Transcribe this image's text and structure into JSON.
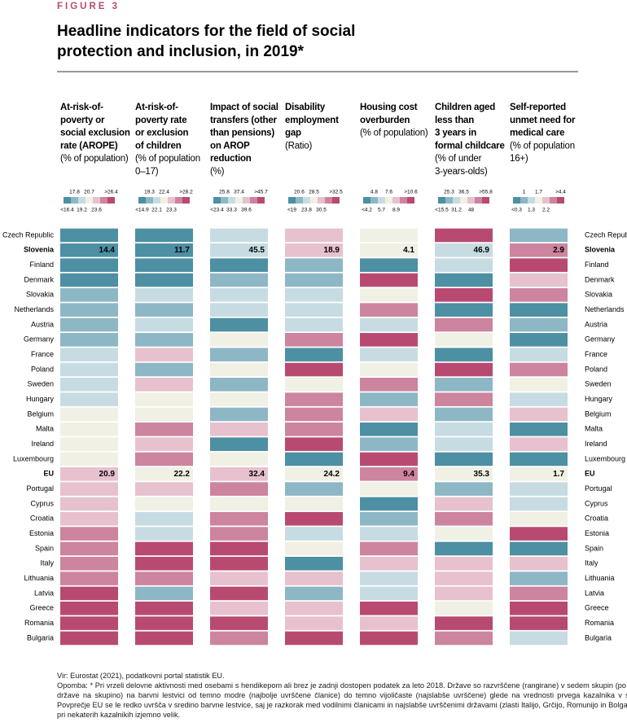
{
  "figure_label": "FIGURE 3",
  "title_lines": [
    "Headline indicators for the field of social",
    "protection and inclusion, in 2019*"
  ],
  "chart_data": {
    "type": "heatmap",
    "rows": [
      "Czech Republic",
      "Slovenia",
      "Finland",
      "Denmark",
      "Slovakia",
      "Netherlands",
      "Austria",
      "Germany",
      "France",
      "Poland",
      "Sweden",
      "Hungary",
      "Belgium",
      "Malta",
      "Ireland",
      "Luxembourg",
      "EU",
      "Portugal",
      "Cyprus",
      "Croatia",
      "Estonia",
      "Spain",
      "Italy",
      "Lithuania",
      "Latvia",
      "Greece",
      "Romania",
      "Bulgaria"
    ],
    "palette": [
      "#4d8fa3",
      "#8db7c5",
      "#c7dce2",
      "#f0f1e4",
      "#e7c1ce",
      "#cc849f",
      "#b84a72"
    ],
    "columns": [
      {
        "title_lines": [
          "At-risk-of-",
          "poverty or",
          "social exclusion",
          "rate (AROPE)"
        ],
        "unit_lines": [
          "(% of population)"
        ],
        "legend_top": [
          "17.8",
          "20.7",
          ">26.4"
        ],
        "legend_bottom": [
          "<16.4",
          "19.2",
          "23.6"
        ],
        "colors": [
          "#4d8fa3",
          "#4d8fa3",
          "#4d8fa3",
          "#4d8fa3",
          "#8db7c5",
          "#8db7c5",
          "#8db7c5",
          "#8db7c5",
          "#c7dce2",
          "#c7dce2",
          "#c7dce2",
          "#c7dce2",
          "#f0f1e4",
          "#f0f1e4",
          "#f0f1e4",
          "#f0f1e4",
          "#e7c1ce",
          "#e7c1ce",
          "#e7c1ce",
          "#e7c1ce",
          "#cc849f",
          "#cc849f",
          "#cc849f",
          "#cc849f",
          "#b84a72",
          "#b84a72",
          "#b84a72",
          "#b84a72"
        ],
        "values": [
          null,
          14.4,
          null,
          null,
          null,
          null,
          null,
          null,
          null,
          null,
          null,
          null,
          null,
          null,
          null,
          null,
          20.9,
          null,
          null,
          null,
          null,
          null,
          null,
          null,
          null,
          null,
          null,
          null
        ]
      },
      {
        "title_lines": [
          "At-risk-of-",
          "poverty rate",
          "or exclusion",
          "of children"
        ],
        "unit_lines": [
          "(% of population",
          "0–17)"
        ],
        "legend_top": [
          "19.3",
          "22.4",
          ">28.2"
        ],
        "legend_bottom": [
          "<14.9",
          "22.1",
          "23.3"
        ],
        "colors": [
          "#4d8fa3",
          "#4d8fa3",
          "#4d8fa3",
          "#4d8fa3",
          "#c7dce2",
          "#8db7c5",
          "#c7dce2",
          "#8db7c5",
          "#e7c1ce",
          "#8db7c5",
          "#e7c1ce",
          "#f0f1e4",
          "#f0f1e4",
          "#cc849f",
          "#e7c1ce",
          "#cc849f",
          "#f0f1e4",
          "#e7c1ce",
          "#f0f1e4",
          "#c7dce2",
          "#c7dce2",
          "#b84a72",
          "#b84a72",
          "#cc849f",
          "#8db7c5",
          "#b84a72",
          "#b84a72",
          "#b84a72"
        ],
        "values": [
          null,
          11.7,
          null,
          null,
          null,
          null,
          null,
          null,
          null,
          null,
          null,
          null,
          null,
          null,
          null,
          null,
          22.2,
          null,
          null,
          null,
          null,
          null,
          null,
          null,
          null,
          null,
          null,
          null
        ]
      },
      {
        "title_lines": [
          "Impact of social",
          "transfers (other",
          "than pensions)",
          "on AROP",
          "reduction"
        ],
        "unit_lines": [
          "(%)"
        ],
        "legend_top": [
          "25.8",
          "37.4",
          ">45.7"
        ],
        "legend_bottom": [
          "<23.4",
          "33.3",
          "39.6"
        ],
        "colors": [
          "#c7dce2",
          "#c7dce2",
          "#4d8fa3",
          "#8db7c5",
          "#c7dce2",
          "#c7dce2",
          "#4d8fa3",
          "#f0f1e4",
          "#8db7c5",
          "#f0f1e4",
          "#8db7c5",
          "#f0f1e4",
          "#8db7c5",
          "#e7c1ce",
          "#4d8fa3",
          "#f0f1e4",
          "#e7c1ce",
          "#cc849f",
          "#f0f1e4",
          "#cc849f",
          "#cc849f",
          "#b84a72",
          "#b84a72",
          "#e7c1ce",
          "#b84a72",
          "#e7c1ce",
          "#b84a72",
          "#cc849f"
        ],
        "values": [
          null,
          45.5,
          null,
          null,
          null,
          null,
          null,
          null,
          null,
          null,
          null,
          null,
          null,
          null,
          null,
          null,
          32.4,
          null,
          null,
          null,
          null,
          null,
          null,
          null,
          null,
          null,
          null,
          null
        ]
      },
      {
        "title_lines": [
          "Disability",
          "employment",
          "gap"
        ],
        "unit_lines": [
          "(Ratio)"
        ],
        "legend_top": [
          "20.6",
          "28.5",
          ">32.5"
        ],
        "legend_bottom": [
          "<19",
          "23.8",
          "30.5"
        ],
        "colors": [
          "#e7c1ce",
          "#e7c1ce",
          "#8db7c5",
          "#8db7c5",
          "#c7dce2",
          "#c7dce2",
          "#c7dce2",
          "#cc849f",
          "#4d8fa3",
          "#b84a72",
          "#f0f1e4",
          "#cc849f",
          "#cc849f",
          "#cc849f",
          "#b84a72",
          "#4d8fa3",
          "#f0f1e4",
          "#8db7c5",
          "#f0f1e4",
          "#b84a72",
          "#c7dce2",
          "#f0f1e4",
          "#4d8fa3",
          "#e7c1ce",
          "#8db7c5",
          "#e7c1ce",
          "#e7c1ce",
          "#b84a72"
        ],
        "values": [
          null,
          18.9,
          null,
          null,
          null,
          null,
          null,
          null,
          null,
          null,
          null,
          null,
          null,
          null,
          null,
          null,
          24.2,
          null,
          null,
          null,
          null,
          null,
          null,
          null,
          null,
          null,
          null,
          null
        ]
      },
      {
        "title_lines": [
          "Housing cost",
          "overburden"
        ],
        "unit_lines": [
          "(% of population)"
        ],
        "legend_top": [
          "4.8",
          "7.6",
          ">10.6"
        ],
        "legend_bottom": [
          "<4.2",
          "5.7",
          "8.9"
        ],
        "colors": [
          "#f0f1e4",
          "#f0f1e4",
          "#4d8fa3",
          "#b84a72",
          "#f0f1e4",
          "#cc849f",
          "#c7dce2",
          "#b84a72",
          "#c7dce2",
          "#f0f1e4",
          "#cc849f",
          "#8db7c5",
          "#e7c1ce",
          "#4d8fa3",
          "#8db7c5",
          "#b84a72",
          "#cc849f",
          "#f0f1e4",
          "#4d8fa3",
          "#8db7c5",
          "#c7dce2",
          "#cc849f",
          "#e7c1ce",
          "#c7dce2",
          "#c7dce2",
          "#b84a72",
          "#e7c1ce",
          "#b84a72"
        ],
        "values": [
          null,
          4.1,
          null,
          null,
          null,
          null,
          null,
          null,
          null,
          null,
          null,
          null,
          null,
          null,
          null,
          null,
          9.4,
          null,
          null,
          null,
          null,
          null,
          null,
          null,
          null,
          null,
          null,
          null
        ]
      },
      {
        "title_lines": [
          "Children aged",
          "less than",
          "3 years in",
          "formal childcare"
        ],
        "unit_lines": [
          "(% of under",
          "3-years-olds)"
        ],
        "legend_top": [
          "25.3",
          "36.5",
          ">55.8"
        ],
        "legend_bottom": [
          "<15.5",
          "31.2",
          "48"
        ],
        "colors": [
          "#b84a72",
          "#c7dce2",
          "#c7dce2",
          "#4d8fa3",
          "#b84a72",
          "#4d8fa3",
          "#cc849f",
          "#f0f1e4",
          "#4d8fa3",
          "#b84a72",
          "#8db7c5",
          "#cc849f",
          "#8db7c5",
          "#c7dce2",
          "#c7dce2",
          "#4d8fa3",
          "#f0f1e4",
          "#8db7c5",
          "#e7c1ce",
          "#cc849f",
          "#f0f1e4",
          "#4d8fa3",
          "#e7c1ce",
          "#e7c1ce",
          "#e7c1ce",
          "#f0f1e4",
          "#b84a72",
          "#cc849f"
        ],
        "values": [
          null,
          46.9,
          null,
          null,
          null,
          null,
          null,
          null,
          null,
          null,
          null,
          null,
          null,
          null,
          null,
          null,
          35.3,
          null,
          null,
          null,
          null,
          null,
          null,
          null,
          null,
          null,
          null,
          null
        ]
      },
      {
        "title_lines": [
          "Self-reported",
          "unmet need for",
          "medical care"
        ],
        "unit_lines": [
          "(% of population",
          "16+)"
        ],
        "legend_top": [
          "1",
          "1.7",
          ">4.4"
        ],
        "legend_bottom": [
          "<0.3",
          "1.3",
          "2.2"
        ],
        "colors": [
          "#8db7c5",
          "#cc849f",
          "#b84a72",
          "#e7c1ce",
          "#cc849f",
          "#4d8fa3",
          "#8db7c5",
          "#4d8fa3",
          "#c7dce2",
          "#cc849f",
          "#f0f1e4",
          "#c7dce2",
          "#e7c1ce",
          "#4d8fa3",
          "#e7c1ce",
          "#4d8fa3",
          "#f0f1e4",
          "#c7dce2",
          "#c7dce2",
          "#f0f1e4",
          "#b84a72",
          "#4d8fa3",
          "#e7c1ce",
          "#8db7c5",
          "#cc849f",
          "#b84a72",
          "#b84a72",
          "#c7dce2"
        ],
        "values": [
          null,
          2.9,
          null,
          null,
          null,
          null,
          null,
          null,
          null,
          null,
          null,
          null,
          null,
          null,
          null,
          null,
          1.7,
          null,
          null,
          null,
          null,
          null,
          null,
          null,
          null,
          null,
          null,
          null
        ]
      }
    ]
  },
  "source": "Vir: Eurostat (2021), podatkovni portal statistik EU.",
  "note": "Opomba: * Pri vrzeli delovne aktivnosti med osebami s hendikepom ali brez je zadnji dostopen podatek za leto 2018. Države so razvrščene (rangirane) v sedem skupin (po štiri države na skupino) na barvni lestvici od temno modre (najbolje uvrščene članice) do temno vijoličaste (najslabše uvrščene) glede na vrednosti prvega kazalnika v sliki. Povprečje EU se le redko uvršča v sredino barvne lestvice, saj je razkorak med vodilnimi članicami in najslabše uvrščenimi državami (zlasti Italijo, Grčijo, Romunijo in Bolgarijo) pri nekaterih kazalnikih izjemno velik."
}
